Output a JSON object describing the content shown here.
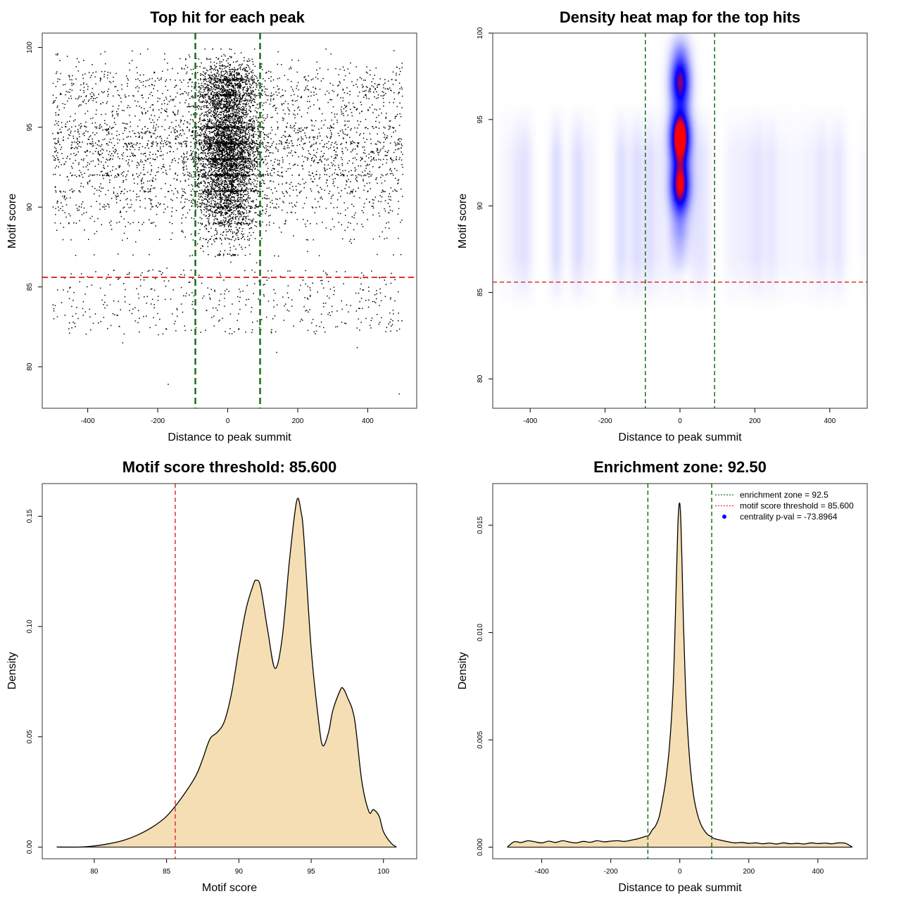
{
  "chart_data": [
    {
      "type": "scatter",
      "title": "Top hit for each peak",
      "xlabel": "Distance to peak summit",
      "ylabel": "Motif score",
      "xlim": [
        -530,
        540
      ],
      "ylim": [
        77.4,
        100.9
      ],
      "xticks": [
        -400,
        -200,
        0,
        200,
        400
      ],
      "yticks": [
        80,
        85,
        90,
        95,
        100
      ],
      "xtick_labels": [
        "-400",
        "-200",
        "0",
        "200",
        "400"
      ],
      "ytick_labels": [
        "80",
        "85",
        "90",
        "95",
        "100"
      ],
      "threshold_y": 85.6,
      "zone_x": [
        -92.5,
        92.5
      ],
      "threshold_color": "#e0302f",
      "zone_color": "#1a6e1a",
      "point_color": "#000000",
      "point_summary": {
        "n_background": 3500,
        "n_central": 5000,
        "x_range": [
          -500,
          500
        ],
        "score_peaks": [
          91.2,
          94.0,
          97.2
        ],
        "central_sd": 45,
        "discrete_levels": [
          86,
          87,
          88,
          89,
          90,
          91,
          92,
          93,
          94,
          95,
          97,
          98
        ]
      },
      "outliers": [
        {
          "x": -300,
          "y": 81.5
        },
        {
          "x": -170,
          "y": 78.9
        },
        {
          "x": 140,
          "y": 80.9
        },
        {
          "x": 370,
          "y": 81.2
        },
        {
          "x": 490,
          "y": 78.3
        },
        {
          "x": -430,
          "y": 99.3
        },
        {
          "x": 475,
          "y": 99.8
        },
        {
          "x": -180,
          "y": 99.6
        }
      ]
    },
    {
      "type": "heatmap",
      "title": "Density heat map for the top hits",
      "xlabel": "Distance to peak summit",
      "ylabel": "Motif score",
      "xlim": [
        -500,
        500
      ],
      "ylim": [
        78.3,
        100
      ],
      "xticks": [
        -400,
        -200,
        0,
        200,
        400
      ],
      "yticks": [
        80,
        85,
        90,
        95,
        100
      ],
      "xtick_labels": [
        "-400",
        "-200",
        "0",
        "200",
        "400"
      ],
      "ytick_labels": [
        "80",
        "85",
        "90",
        "95",
        "100"
      ],
      "threshold_y": 85.6,
      "zone_x": [
        -92.5,
        92.5
      ],
      "colors": [
        "#ffffff",
        "#0000ff",
        "#ff0000"
      ],
      "hotspots": [
        {
          "x": 0,
          "y": 94.0,
          "intensity": 1.0
        },
        {
          "x": 0,
          "y": 91.2,
          "intensity": 0.75
        },
        {
          "x": 0,
          "y": 97.2,
          "intensity": 0.65
        }
      ]
    },
    {
      "type": "area",
      "title": "Motif score threshold: 85.600",
      "xlabel": "Motif score",
      "ylabel": "Density",
      "xlim": [
        76.4,
        102.3
      ],
      "ylim": [
        -0.0053,
        0.1648
      ],
      "xticks": [
        80,
        85,
        90,
        95,
        100
      ],
      "yticks": [
        0.0,
        0.05,
        0.1,
        0.15
      ],
      "xtick_labels": [
        "80",
        "85",
        "90",
        "95",
        "100"
      ],
      "ytick_labels": [
        "0.00",
        "0.05",
        "0.10",
        "0.15"
      ],
      "threshold_x": 85.6,
      "fill": "#f5deb3",
      "x": [
        77.4,
        79,
        80,
        81,
        82,
        83,
        84,
        85,
        86,
        87,
        87.5,
        88,
        88.5,
        89,
        89.5,
        90,
        90.5,
        91,
        91.2,
        91.5,
        92,
        92.5,
        93,
        93.5,
        94,
        94.3,
        94.5,
        95,
        95.5,
        95.8,
        96.2,
        96.5,
        97,
        97.2,
        97.5,
        98,
        98.5,
        99,
        99.3,
        99.7,
        100,
        100.5,
        100.9
      ],
      "y": [
        0.0,
        0.0,
        0.0005,
        0.0015,
        0.003,
        0.0055,
        0.009,
        0.014,
        0.022,
        0.032,
        0.04,
        0.049,
        0.052,
        0.057,
        0.07,
        0.09,
        0.108,
        0.119,
        0.121,
        0.118,
        0.098,
        0.081,
        0.095,
        0.13,
        0.157,
        0.152,
        0.14,
        0.09,
        0.058,
        0.046,
        0.052,
        0.062,
        0.071,
        0.072,
        0.068,
        0.058,
        0.03,
        0.016,
        0.017,
        0.014,
        0.007,
        0.002,
        0.0
      ]
    },
    {
      "type": "area",
      "title": "Enrichment zone: 92.50",
      "xlabel": "Distance to peak summit",
      "ylabel": "Density",
      "xlim": [
        -542,
        543
      ],
      "ylim": [
        -0.00054,
        0.01694
      ],
      "xticks": [
        -400,
        -200,
        0,
        200,
        400
      ],
      "yticks": [
        0.0,
        0.005,
        0.01,
        0.015
      ],
      "xtick_labels": [
        "-400",
        "-200",
        "0",
        "200",
        "400"
      ],
      "ytick_labels": [
        "0.000",
        "0.005",
        "0.010",
        "0.015"
      ],
      "zone_x": [
        -92.5,
        92.5
      ],
      "fill": "#f5deb3",
      "legend": [
        {
          "label": "enrichment zone = 92.5",
          "color": "#1a6e1a",
          "kind": "line"
        },
        {
          "label": "motif score threshold = 85.600",
          "color": "#e0302f",
          "kind": "line"
        },
        {
          "label": "centrality p-val = -73.8964",
          "color": "#0000ff",
          "kind": "point"
        }
      ],
      "legend_position": "top-right",
      "x": [
        -500,
        -480,
        -460,
        -440,
        -420,
        -400,
        -380,
        -360,
        -340,
        -320,
        -300,
        -280,
        -260,
        -240,
        -220,
        -200,
        -180,
        -160,
        -140,
        -120,
        -100,
        -90,
        -80,
        -70,
        -60,
        -50,
        -40,
        -30,
        -20,
        -15,
        -10,
        -6,
        -3,
        0,
        3,
        6,
        10,
        15,
        20,
        30,
        40,
        50,
        60,
        70,
        80,
        90,
        100,
        120,
        140,
        160,
        180,
        200,
        220,
        240,
        260,
        280,
        300,
        320,
        340,
        360,
        380,
        400,
        420,
        440,
        460,
        480,
        500
      ],
      "y": [
        0.0,
        0.00025,
        0.00022,
        0.0003,
        0.00025,
        0.0002,
        0.00028,
        0.00022,
        0.0003,
        0.00024,
        0.0002,
        0.00027,
        0.00023,
        0.0003,
        0.00025,
        0.00028,
        0.0003,
        0.00027,
        0.00033,
        0.0004,
        0.0005,
        0.00055,
        0.0008,
        0.001,
        0.0014,
        0.0022,
        0.0032,
        0.0047,
        0.0072,
        0.0095,
        0.0125,
        0.0148,
        0.0158,
        0.016,
        0.0152,
        0.0135,
        0.0108,
        0.0082,
        0.0062,
        0.0038,
        0.0024,
        0.0016,
        0.0011,
        0.0008,
        0.0006,
        0.0005,
        0.0004,
        0.00032,
        0.00025,
        0.0002,
        0.00022,
        0.00018,
        0.0002,
        0.00016,
        0.00019,
        0.00015,
        0.0002,
        0.00016,
        0.00018,
        0.00015,
        0.0002,
        0.00017,
        0.00019,
        0.00016,
        0.0002,
        0.00018,
        0.0
      ]
    }
  ]
}
